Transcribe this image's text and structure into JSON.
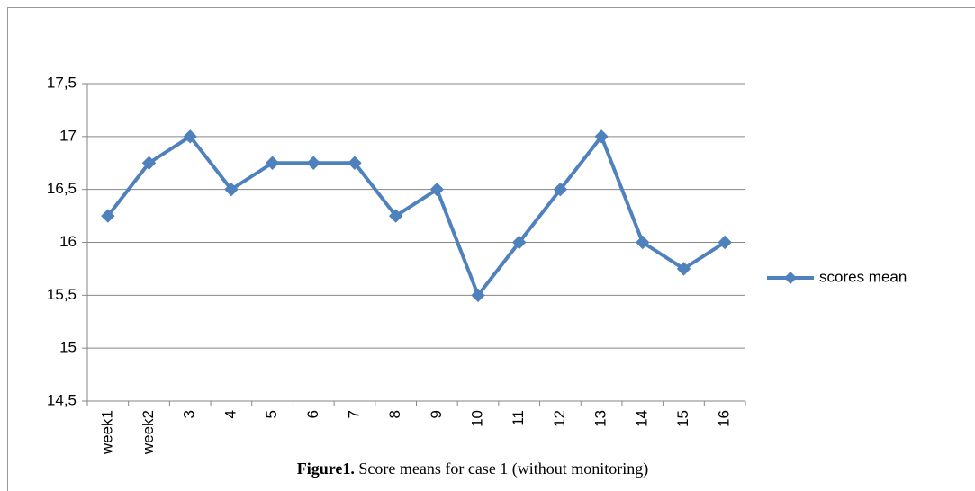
{
  "chart_data": {
    "type": "line",
    "categories": [
      "week1",
      "week2",
      "3",
      "4",
      "5",
      "6",
      "7",
      "8",
      "9",
      "10",
      "11",
      "12",
      "13",
      "14",
      "15",
      "16"
    ],
    "series": [
      {
        "name": "scores mean",
        "color": "#4f81bd",
        "values": [
          16.25,
          16.75,
          17,
          16.5,
          16.75,
          16.75,
          16.75,
          16.25,
          16.5,
          15.5,
          16,
          16.5,
          17,
          16,
          15.75,
          16
        ]
      }
    ],
    "ylim": [
      14.5,
      17.5
    ],
    "yticks": [
      {
        "value": 14.5,
        "label": "14,5"
      },
      15,
      {
        "value": 15.5,
        "label": "15,5"
      },
      16,
      {
        "value": 16.5,
        "label": "16,5"
      },
      17,
      {
        "value": 17.5,
        "label": "17,5"
      }
    ],
    "grid": true,
    "legend": "right",
    "caption": {
      "label": "Figure1.",
      "text": "Score means for case 1 (without monitoring)"
    }
  }
}
